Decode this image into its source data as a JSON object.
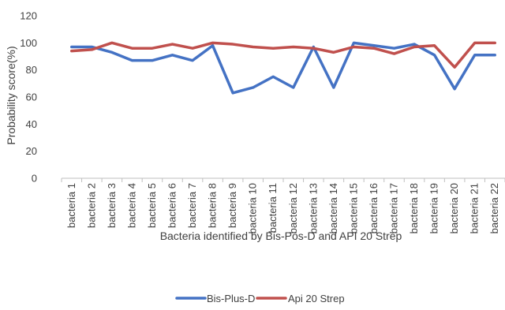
{
  "chart_data": {
    "type": "line",
    "title": "",
    "xlabel": "Bacteria identified by Bis-Pos-D and API 20 Strep",
    "ylabel": "Probability score(%)",
    "ylim": [
      0,
      120
    ],
    "yticks": [
      0,
      20,
      40,
      60,
      80,
      100,
      120
    ],
    "grid": false,
    "legend_position": "bottom",
    "categories": [
      "bacteria 1",
      "bacteria 2",
      "bacteria 3",
      "bacteria 4",
      "bacteria 5",
      "bacteria 6",
      "bacteria 7",
      "bacteria 8",
      "bacteria 9",
      "bacteria 10",
      "bacteria 11",
      "bacteria 12",
      "bacteria 13",
      "bacteria 14",
      "bacteria 15",
      "bacteria 16",
      "bacteria 17",
      "bacteria 18",
      "bacteria 19",
      "bacteria 20",
      "bacteria 21",
      "bacteria 22"
    ],
    "series": [
      {
        "name": "Bis-Plus-D",
        "color": "#4472C4",
        "values": [
          97,
          97,
          93,
          87,
          87,
          91,
          87,
          98,
          63,
          67,
          75,
          67,
          97,
          67,
          100,
          98,
          96,
          99,
          91,
          66,
          91,
          91
        ]
      },
      {
        "name": "Api 20 Strep",
        "color": "#C0504D",
        "values": [
          94,
          95,
          100,
          96,
          96,
          99,
          96,
          100,
          99,
          97,
          96,
          97,
          96,
          93,
          97,
          96,
          92,
          97,
          98,
          82,
          100,
          100
        ]
      }
    ]
  }
}
